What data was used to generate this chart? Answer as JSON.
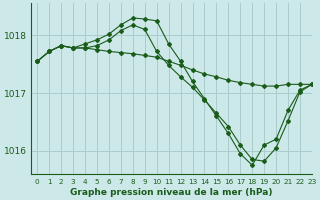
{
  "bg_color": "#cce8e8",
  "grid_color": "#aacccc",
  "line_color": "#1a5c1a",
  "title": "Graphe pression niveau de la mer (hPa)",
  "ylim": [
    1015.6,
    1018.55
  ],
  "xlim": [
    -0.5,
    23
  ],
  "yticks": [
    1016,
    1017,
    1018
  ],
  "xticks": [
    0,
    1,
    2,
    3,
    4,
    5,
    6,
    7,
    8,
    9,
    10,
    11,
    12,
    13,
    14,
    15,
    16,
    17,
    18,
    19,
    20,
    21,
    22,
    23
  ],
  "series": [
    [
      1017.55,
      1017.72,
      1017.82,
      1017.78,
      1017.85,
      1017.92,
      1018.02,
      1018.18,
      1018.3,
      1018.28,
      1018.25,
      1017.85,
      1017.55,
      1017.2,
      1016.9,
      1016.6,
      1016.3,
      1015.95,
      1015.75,
      1016.1,
      1016.2,
      1016.7,
      1017.05,
      1017.15
    ],
    [
      1017.55,
      1017.72,
      1017.82,
      1017.78,
      1017.78,
      1017.82,
      1017.92,
      1018.08,
      1018.18,
      1018.1,
      1017.72,
      1017.48,
      1017.28,
      1017.1,
      1016.88,
      1016.65,
      1016.42,
      1016.1,
      1015.85,
      1015.82,
      1016.05,
      1016.52,
      1017.02,
      1017.15
    ],
    [
      1017.55,
      1017.72,
      1017.82,
      1017.78,
      1017.78,
      1017.75,
      1017.72,
      1017.7,
      1017.68,
      1017.65,
      1017.62,
      1017.55,
      1017.48,
      1017.4,
      1017.33,
      1017.28,
      1017.22,
      1017.18,
      1017.15,
      1017.12,
      1017.12,
      1017.15,
      1017.15,
      1017.15
    ]
  ]
}
